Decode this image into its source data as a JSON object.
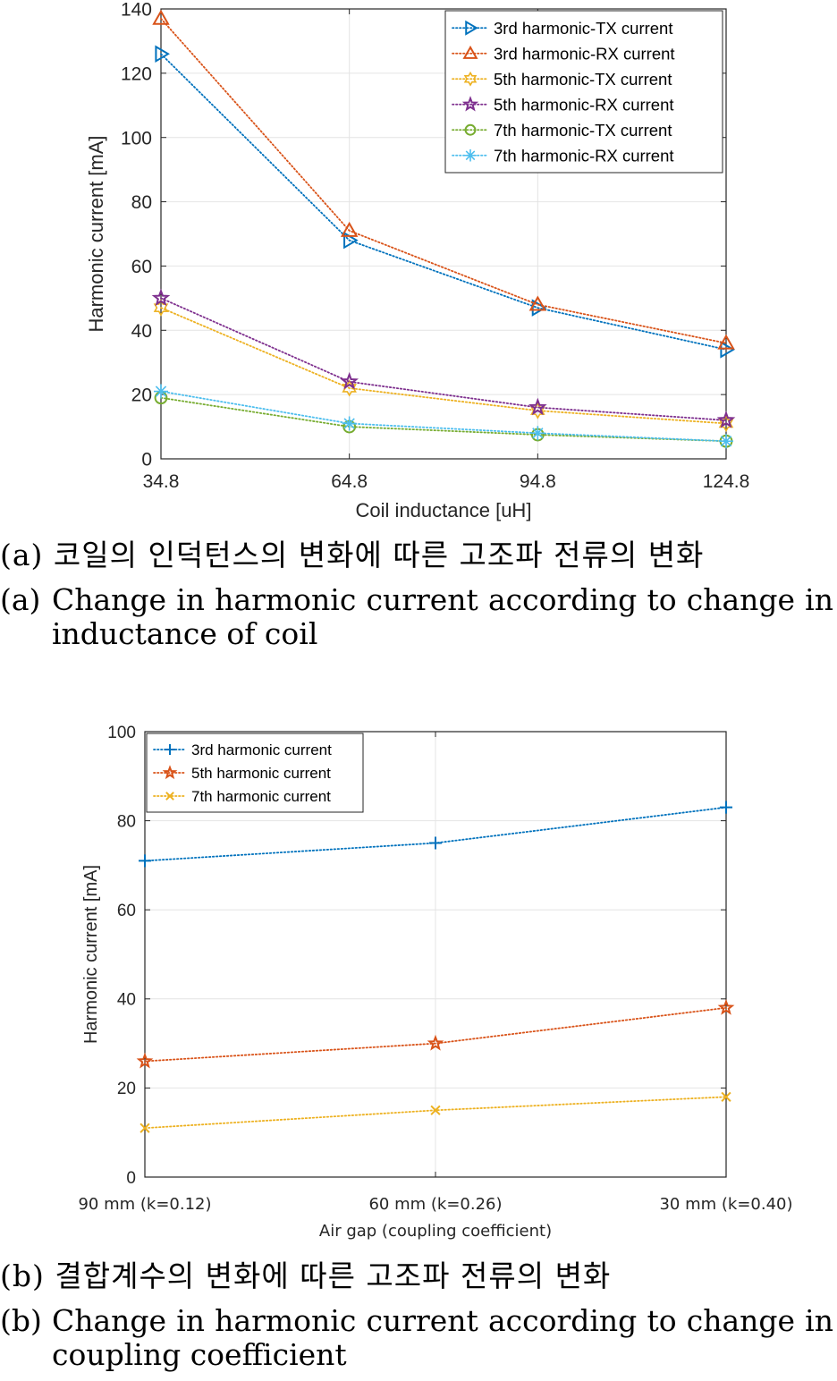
{
  "charts": [
    {
      "caption_ko": "(a) 코일의 인덕턴스의 변화에 따른 고조파 전류의 변화",
      "caption_en_label": "(a)",
      "caption_en_text": "Change in harmonic current according to change in inductance of coil",
      "chart_data": {
        "type": "line",
        "title": "",
        "xlabel": "Coil inductance [uH]",
        "ylabel": "Harmonic current [mA]",
        "x": [
          34.8,
          64.8,
          94.8,
          124.8
        ],
        "x_ticks": [
          "34.8",
          "64.8",
          "94.8",
          "124.8"
        ],
        "y_ticks": [
          "0",
          "20",
          "40",
          "60",
          "80",
          "100",
          "120",
          "140"
        ],
        "xlim": [
          34.8,
          124.8
        ],
        "ylim": [
          0,
          140
        ],
        "grid": true,
        "legend_position": "top-right",
        "series": [
          {
            "name": "3rd harmonic-TX current",
            "values": [
              126,
              68,
              47,
              34
            ],
            "color": "#0072BD",
            "marker": "triangle-right"
          },
          {
            "name": "3rd harmonic-RX current",
            "values": [
              137,
              71,
              48,
              36
            ],
            "color": "#D95319",
            "marker": "triangle-up"
          },
          {
            "name": "5th harmonic-TX current",
            "values": [
              47,
              22,
              15,
              11
            ],
            "color": "#EDB120",
            "marker": "hexagram"
          },
          {
            "name": "5th harmonic-RX current",
            "values": [
              50,
              24,
              16,
              12
            ],
            "color": "#7E2F8E",
            "marker": "pentagram"
          },
          {
            "name": "7th harmonic-TX current",
            "values": [
              19,
              10,
              7.5,
              5.5
            ],
            "color": "#77AC30",
            "marker": "circle"
          },
          {
            "name": "7th harmonic-RX current",
            "values": [
              21,
              11,
              8,
              5.5
            ],
            "color": "#4DBEEE",
            "marker": "asterisk"
          }
        ]
      }
    },
    {
      "caption_ko": "(b) 결합계수의 변화에 따른 고조파 전류의 변화",
      "caption_en_label": "(b)",
      "caption_en_text": "Change in harmonic current according to change in coupling coefficient",
      "chart_data": {
        "type": "line",
        "title": "",
        "xlabel": "Air gap (coupling coefficient)",
        "ylabel": "Harmonic current [mA]",
        "categories": [
          "90 mm (k=0.12)",
          "60 mm (k=0.26)",
          "30 mm (k=0.40)"
        ],
        "y_ticks": [
          "0",
          "20",
          "40",
          "60",
          "80",
          "100"
        ],
        "ylim": [
          0,
          100
        ],
        "grid": true,
        "legend_position": "top-left",
        "series": [
          {
            "name": "3rd harmonic current",
            "values": [
              71,
              75,
              83
            ],
            "color": "#0072BD",
            "marker": "plus"
          },
          {
            "name": "5th harmonic current",
            "values": [
              26,
              30,
              38
            ],
            "color": "#D95319",
            "marker": "pentagram"
          },
          {
            "name": "7th harmonic current",
            "values": [
              11,
              15,
              18
            ],
            "color": "#EDB120",
            "marker": "cross"
          }
        ]
      }
    }
  ]
}
